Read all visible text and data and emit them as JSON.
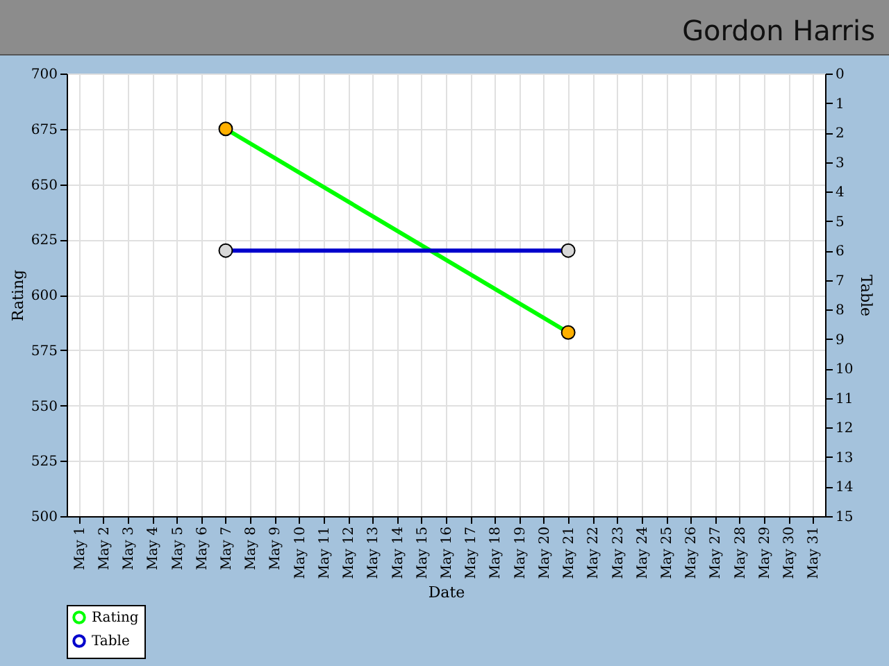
{
  "chart_data": {
    "type": "line",
    "title": "Gordon Harris",
    "xlabel": "Date",
    "ylabel": "Rating",
    "y2label": "Table",
    "categories": [
      "May 1",
      "May 2",
      "May 3",
      "May 4",
      "May 5",
      "May 6",
      "May 7",
      "May 8",
      "May 9",
      "May 10",
      "May 11",
      "May 12",
      "May 13",
      "May 14",
      "May 15",
      "May 16",
      "May 17",
      "May 18",
      "May 19",
      "May 20",
      "May 21",
      "May 22",
      "May 23",
      "May 24",
      "May 25",
      "May 26",
      "May 27",
      "May 28",
      "May 29",
      "May 30",
      "May 31"
    ],
    "series": [
      {
        "name": "Rating",
        "color": "#00ff00",
        "values": [
          null,
          null,
          null,
          null,
          null,
          null,
          675,
          null,
          null,
          null,
          null,
          null,
          null,
          null,
          null,
          null,
          null,
          null,
          null,
          null,
          583,
          null,
          null,
          null,
          null,
          null,
          null,
          null,
          null,
          null,
          null
        ]
      },
      {
        "name": "Table",
        "color": "#0000cc",
        "axis": "y2",
        "values": [
          null,
          null,
          null,
          null,
          null,
          null,
          6,
          null,
          null,
          null,
          null,
          null,
          null,
          null,
          null,
          null,
          null,
          null,
          null,
          null,
          6,
          null,
          null,
          null,
          null,
          null,
          null,
          null,
          null,
          null,
          null
        ]
      }
    ],
    "ylim": [
      500,
      700
    ],
    "yticks": [
      500,
      525,
      550,
      575,
      600,
      625,
      650,
      675,
      700
    ],
    "y2lim": [
      15,
      0
    ],
    "y2ticks": [
      0,
      1,
      2,
      3,
      4,
      5,
      6,
      7,
      8,
      9,
      10,
      11,
      12,
      13,
      14,
      15
    ],
    "grid": true,
    "legend": "bottom",
    "marker": "circle",
    "line_style": "solid"
  }
}
